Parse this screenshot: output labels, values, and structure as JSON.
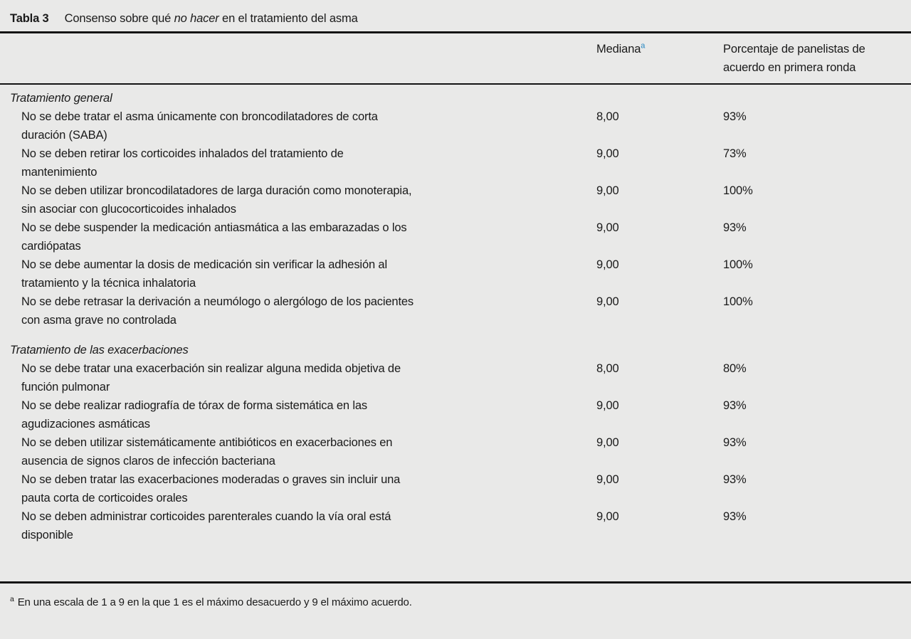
{
  "table": {
    "label": "Tabla 3",
    "title_prefix": "Consenso sobre qué ",
    "title_italic": "no hacer",
    "title_suffix": " en el tratamiento del asma",
    "columns": {
      "mediana_label": "Mediana",
      "mediana_superscript": "a",
      "porcentaje_label": "Porcentaje de panelistas de acuerdo en primera ronda"
    },
    "sections": [
      {
        "header": "Tratamiento general",
        "rows": [
          {
            "text": "No se debe tratar el asma únicamente con broncodilatadores de corta duración (SABA)",
            "mediana": "8,00",
            "porcentaje": "93%"
          },
          {
            "text": "No se deben retirar los corticoides inhalados del tratamiento de mantenimiento",
            "mediana": "9,00",
            "porcentaje": "73%"
          },
          {
            "text": "No se deben utilizar broncodilatadores de larga duración como monoterapia, sin asociar con glucocorticoides inhalados",
            "mediana": "9,00",
            "porcentaje": "100%"
          },
          {
            "text": "No se debe suspender la medicación antiasmática a las embarazadas o los cardiópatas",
            "mediana": "9,00",
            "porcentaje": "93%"
          },
          {
            "text": "No se debe aumentar la dosis de medicación sin verificar la adhesión al tratamiento y la técnica inhalatoria",
            "mediana": "9,00",
            "porcentaje": "100%"
          },
          {
            "text": "No se debe retrasar la derivación a neumólogo o alergólogo de los pacientes con asma grave no controlada",
            "mediana": "9,00",
            "porcentaje": "100%"
          }
        ]
      },
      {
        "header": "Tratamiento de las exacerbaciones",
        "rows": [
          {
            "text": "No se debe tratar una exacerbación sin realizar alguna medida objetiva de función pulmonar",
            "mediana": "8,00",
            "porcentaje": "80%"
          },
          {
            "text": "No se debe realizar radiografía de tórax de forma sistemática en las agudizaciones asmáticas",
            "mediana": "9,00",
            "porcentaje": "93%"
          },
          {
            "text": "No se deben utilizar sistemáticamente antibióticos en exacerbaciones en ausencia de signos claros de infección bacteriana",
            "mediana": "9,00",
            "porcentaje": "93%"
          },
          {
            "text": "No se deben tratar las exacerbaciones moderadas o graves sin incluir una pauta corta de corticoides orales",
            "mediana": "9,00",
            "porcentaje": "93%"
          },
          {
            "text": "No se deben administrar corticoides parenterales cuando la vía oral está disponible",
            "mediana": "9,00",
            "porcentaje": "93%"
          }
        ]
      }
    ],
    "footnote": {
      "marker": "a",
      "text": "En una escala de 1 a 9 en la que 1 es el máximo desacuerdo y 9 el máximo acuerdo."
    },
    "colors": {
      "background": "#e9e9e8",
      "text": "#1a1a1a",
      "rule": "#141414",
      "superscript_link": "#2787c2"
    }
  }
}
